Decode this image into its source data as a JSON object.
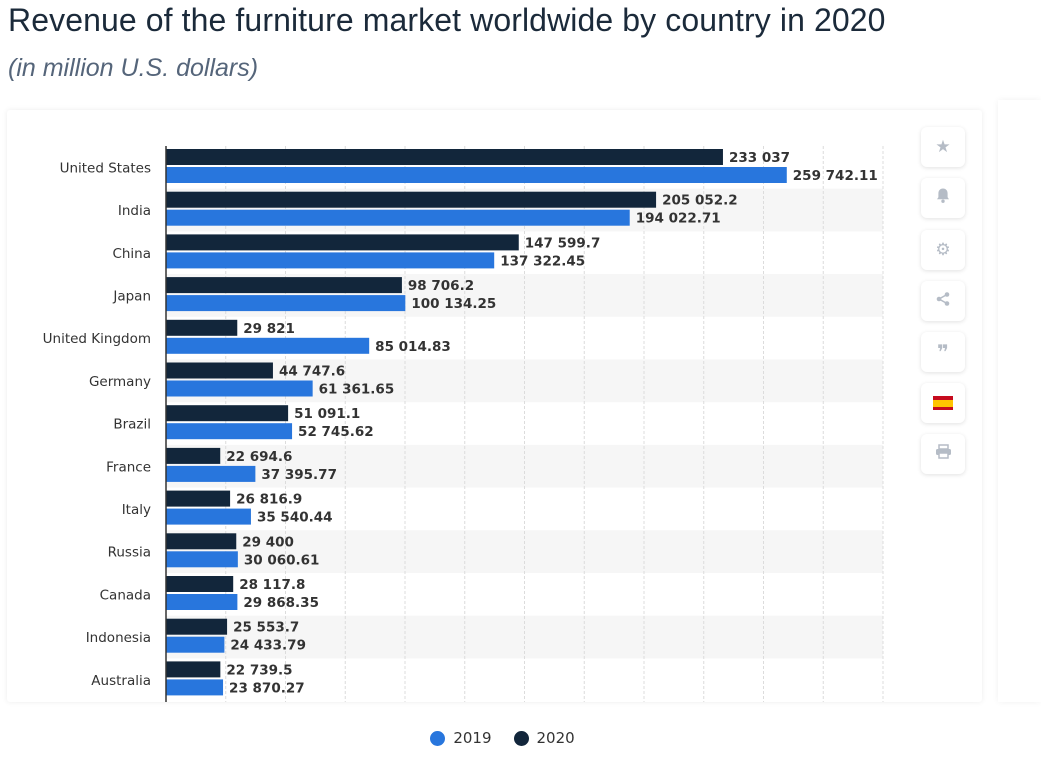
{
  "header": {
    "title": "Revenue of the furniture market worldwide by country in 2020",
    "subtitle": "(in million U.S. dollars)"
  },
  "toolbar": {
    "icons": [
      "star-icon",
      "bell-icon",
      "gear-icon",
      "share-icon",
      "quote-icon",
      "spain-flag-icon",
      "print-icon"
    ]
  },
  "colors": {
    "series_2019": "#2876dd",
    "series_2020": "#12263b",
    "band": "#f6f6f6",
    "grid": "#dcdcdc",
    "axis": "#333333",
    "label_text": "#333333"
  },
  "legend": {
    "items": [
      {
        "label": "2019",
        "color": "#2876dd"
      },
      {
        "label": "2020",
        "color": "#12263b"
      }
    ]
  },
  "chart_data": {
    "type": "bar",
    "orientation": "horizontal",
    "title": "Revenue of the furniture market worldwide by country in 2020",
    "subtitle": "(in million U.S. dollars)",
    "categories": [
      "United States",
      "India",
      "China",
      "Japan",
      "United Kingdom",
      "Germany",
      "Brazil",
      "France",
      "Italy",
      "Russia",
      "Canada",
      "Indonesia",
      "Australia"
    ],
    "series": [
      {
        "name": "2020",
        "values": [
          233037,
          205052.2,
          147599.7,
          98706.2,
          29821,
          44747.6,
          51091.1,
          22694.6,
          26816.9,
          29400,
          28117.8,
          25553.7,
          22739.5
        ],
        "labels": [
          "233 037",
          "205 052.2",
          "147 599.7",
          "98 706.2",
          "29 821",
          "44 747.6",
          "51 091.1",
          "22 694.6",
          "26 816.9",
          "29 400",
          "28 117.8",
          "25 553.7",
          "22 739.5"
        ]
      },
      {
        "name": "2019",
        "values": [
          259742.11,
          194022.71,
          137322.45,
          100134.25,
          85014.83,
          61361.65,
          52745.62,
          37395.77,
          35540.44,
          30060.61,
          29868.35,
          24433.79,
          23870.27
        ],
        "labels": [
          "259 742.11",
          "194 022.71",
          "137 322.45",
          "100 134.25",
          "85 014.83",
          "61 361.65",
          "52 745.62",
          "37 395.77",
          "35 540.44",
          "30 060.61",
          "29 868.35",
          "24 433.79",
          "23 870.27"
        ]
      }
    ],
    "xlim": [
      0,
      300000
    ],
    "grid": true,
    "legend_position": "bottom-center"
  }
}
